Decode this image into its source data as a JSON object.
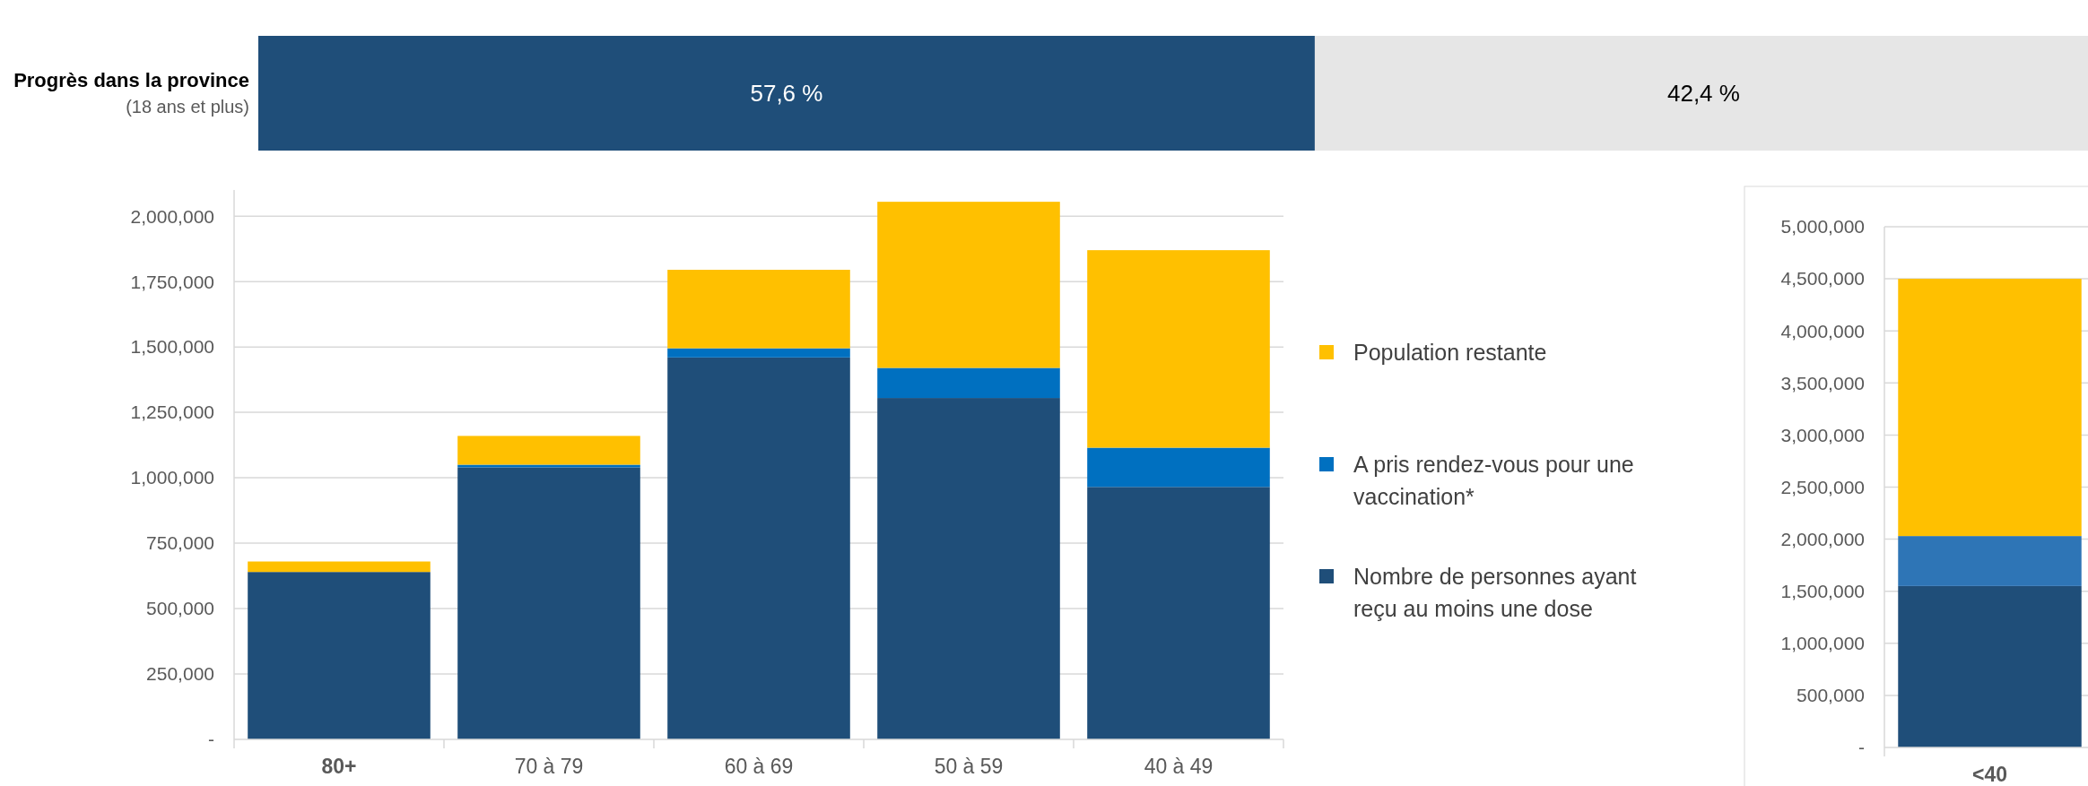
{
  "chart_data": [
    {
      "type": "bar",
      "orientation": "horizontal",
      "stacked": true,
      "categories": [
        "Progrès dans la province\n(18 ans et plus)"
      ],
      "series": [
        {
          "color": "#1f4e79",
          "values": [
            57.6
          ],
          "value_labels": [
            "57,6 %"
          ]
        },
        {
          "color": "#e6e6e6",
          "values": [
            42.4
          ],
          "value_labels": [
            "42,4 %"
          ]
        }
      ]
    },
    {
      "type": "bar",
      "stacked": true,
      "categories": [
        "80+",
        "70 à 79",
        "60 à 69",
        "50 à 59",
        "40 à 49"
      ],
      "ylim": [
        0,
        2100000
      ],
      "yticks": [
        {
          "value": 0,
          "label": "-"
        },
        {
          "value": 250000,
          "label": "250,000"
        },
        {
          "value": 500000,
          "label": "500,000"
        },
        {
          "value": 750000,
          "label": "750,000"
        },
        {
          "value": 1000000,
          "label": "1,000,000"
        },
        {
          "value": 1250000,
          "label": "1,250,000"
        },
        {
          "value": 1500000,
          "label": "1,500,000"
        },
        {
          "value": 1750000,
          "label": "1,750,000"
        },
        {
          "value": 2000000,
          "label": "2,000,000"
        }
      ],
      "grid": "y",
      "legend": "right",
      "series": [
        {
          "name": "Nombre de personnes ayant reçu au moins une dose",
          "color": "#1f4e79",
          "values": [
            640000,
            1040000,
            1460000,
            1305000,
            965000
          ]
        },
        {
          "name": "A pris rendez-vous pour une vaccination*",
          "color": "#0070c0",
          "values": [
            0,
            10000,
            35000,
            115000,
            150000
          ]
        },
        {
          "name": "Population restante",
          "color": "#ffc000",
          "values": [
            40000,
            110000,
            300000,
            635000,
            755000
          ]
        }
      ]
    },
    {
      "type": "bar",
      "stacked": true,
      "categories": [
        "<40"
      ],
      "ylim": [
        0,
        5000000
      ],
      "yticks": [
        {
          "value": 0,
          "label": "-"
        },
        {
          "value": 500000,
          "label": "500,000"
        },
        {
          "value": 1000000,
          "label": "1,000,000"
        },
        {
          "value": 1500000,
          "label": "1,500,000"
        },
        {
          "value": 2000000,
          "label": "2,000,000"
        },
        {
          "value": 2500000,
          "label": "2,500,000"
        },
        {
          "value": 3000000,
          "label": "3,000,000"
        },
        {
          "value": 3500000,
          "label": "3,500,000"
        },
        {
          "value": 4000000,
          "label": "4,000,000"
        },
        {
          "value": 4500000,
          "label": "4,500,000"
        },
        {
          "value": 5000000,
          "label": "5,000,000"
        }
      ],
      "grid": "y",
      "series": [
        {
          "color": "#1f4e79",
          "values": [
            1550000
          ]
        },
        {
          "color": "#2e75b6",
          "values": [
            480000
          ]
        },
        {
          "color": "#ffc000",
          "values": [
            2470000
          ]
        }
      ]
    }
  ]
}
